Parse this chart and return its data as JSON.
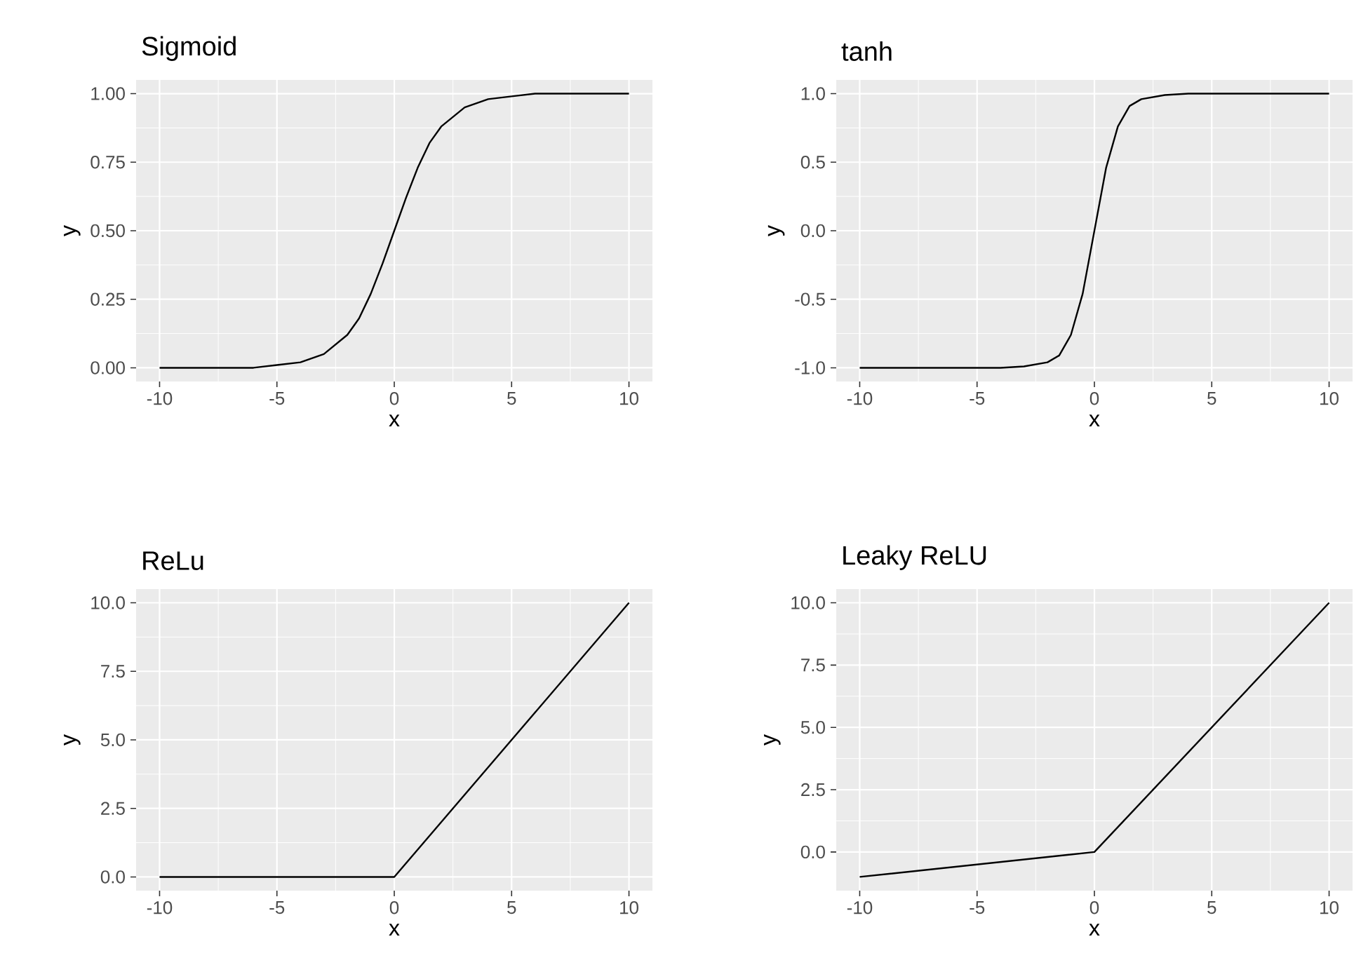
{
  "chart_data": [
    {
      "type": "line",
      "title": "Sigmoid",
      "xlabel": "x",
      "ylabel": "y",
      "color": "#000000",
      "grid": true,
      "x": [
        -10,
        -8,
        -6,
        -5,
        -4,
        -3,
        -2,
        -1.5,
        -1,
        -0.5,
        0,
        0.5,
        1,
        1.5,
        2,
        3,
        4,
        5,
        6,
        8,
        10
      ],
      "values": [
        0,
        0,
        0,
        0.01,
        0.02,
        0.05,
        0.12,
        0.18,
        0.27,
        0.38,
        0.5,
        0.62,
        0.73,
        0.82,
        0.88,
        0.95,
        0.98,
        0.99,
        1,
        1,
        1
      ],
      "xlim": [
        -11,
        11
      ],
      "ylim": [
        -0.05,
        1.05
      ],
      "xticks": [
        -10,
        -5,
        0,
        5,
        10
      ],
      "yticks": [
        {
          "value": 0,
          "label": "0.00"
        },
        {
          "value": 0.25,
          "label": "0.25"
        },
        {
          "value": 0.5,
          "label": "0.50"
        },
        {
          "value": 0.75,
          "label": "0.75"
        },
        {
          "value": 1,
          "label": "1.00"
        }
      ]
    },
    {
      "type": "line",
      "title": "tanh",
      "xlabel": "x",
      "ylabel": "y",
      "color": "#000000",
      "grid": true,
      "x": [
        -10,
        -4,
        -3,
        -2,
        -1.5,
        -1,
        -0.5,
        0,
        0.5,
        1,
        1.5,
        2,
        3,
        4,
        10
      ],
      "values": [
        -1,
        -1,
        -0.99,
        -0.96,
        -0.91,
        -0.76,
        -0.46,
        0,
        0.46,
        0.76,
        0.91,
        0.96,
        0.99,
        1,
        1
      ],
      "xlim": [
        -11,
        11
      ],
      "ylim": [
        -1.1,
        1.1
      ],
      "xticks": [
        -10,
        -5,
        0,
        5,
        10
      ],
      "yticks": [
        {
          "value": -1,
          "label": "-1.0"
        },
        {
          "value": -0.5,
          "label": "-0.5"
        },
        {
          "value": 0,
          "label": "0.0"
        },
        {
          "value": 0.5,
          "label": "0.5"
        },
        {
          "value": 1,
          "label": "1.0"
        }
      ]
    },
    {
      "type": "line",
      "title": "ReLu",
      "xlabel": "x",
      "ylabel": "y",
      "color": "#000000",
      "grid": true,
      "x": [
        -10,
        0,
        10
      ],
      "values": [
        0,
        0,
        10
      ],
      "xlim": [
        -11,
        11
      ],
      "ylim": [
        -0.5,
        10.5
      ],
      "xticks": [
        -10,
        -5,
        0,
        5,
        10
      ],
      "yticks": [
        {
          "value": 0,
          "label": "0.0"
        },
        {
          "value": 2.5,
          "label": "2.5"
        },
        {
          "value": 5,
          "label": "5.0"
        },
        {
          "value": 7.5,
          "label": "7.5"
        },
        {
          "value": 10,
          "label": "10.0"
        }
      ]
    },
    {
      "type": "line",
      "title": "Leaky ReLU",
      "xlabel": "x",
      "ylabel": "y",
      "color": "#000000",
      "grid": true,
      "x": [
        -10,
        0,
        10
      ],
      "values": [
        -1,
        0,
        10
      ],
      "xlim": [
        -11,
        11
      ],
      "ylim": [
        -1.55,
        10.55
      ],
      "xticks": [
        -10,
        -5,
        0,
        5,
        10
      ],
      "yticks": [
        {
          "value": 0,
          "label": "0.0"
        },
        {
          "value": 2.5,
          "label": "2.5"
        },
        {
          "value": 5,
          "label": "5.0"
        },
        {
          "value": 7.5,
          "label": "7.5"
        },
        {
          "value": 10,
          "label": "10.0"
        }
      ]
    }
  ]
}
